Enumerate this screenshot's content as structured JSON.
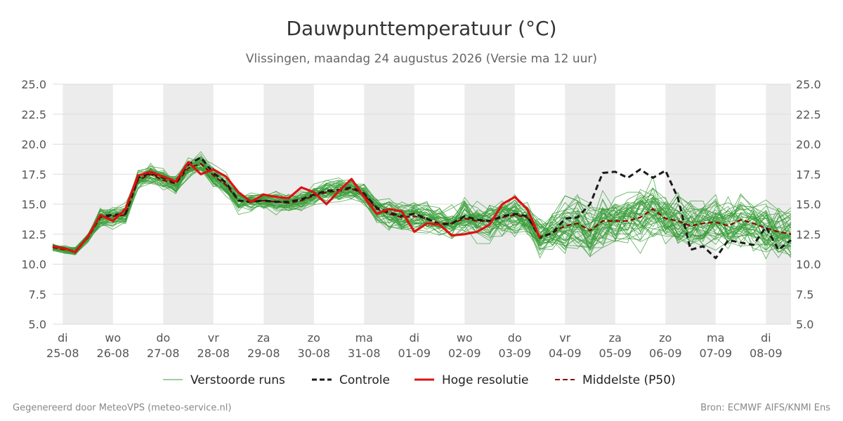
{
  "chart_data": {
    "type": "line",
    "title": "Dauwpunttemperatuur (°C)",
    "subtitle": "Vlissingen, maandag 24 augustus 2026 (Versie ma 12 uur)",
    "ylim": [
      5.0,
      25.0
    ],
    "yticks": [
      "5.0",
      "7.5",
      "10.0",
      "12.5",
      "15.0",
      "17.5",
      "20.0",
      "22.5",
      "25.0"
    ],
    "x_range_days": [
      24.8,
      39.5
    ],
    "shaded_day_starts": [
      25,
      27,
      29,
      31,
      33,
      35,
      37,
      39
    ],
    "x_ticks": [
      {
        "day": 25,
        "dow": "di",
        "date": "25-08"
      },
      {
        "day": 26,
        "dow": "wo",
        "date": "26-08"
      },
      {
        "day": 27,
        "dow": "do",
        "date": "27-08"
      },
      {
        "day": 28,
        "dow": "vr",
        "date": "28-08"
      },
      {
        "day": 29,
        "dow": "za",
        "date": "29-08"
      },
      {
        "day": 30,
        "dow": "zo",
        "date": "30-08"
      },
      {
        "day": 31,
        "dow": "ma",
        "date": "31-08"
      },
      {
        "day": 32,
        "dow": "di",
        "date": "01-09"
      },
      {
        "day": 33,
        "dow": "wo",
        "date": "02-09"
      },
      {
        "day": 34,
        "dow": "do",
        "date": "03-09"
      },
      {
        "day": 35,
        "dow": "vr",
        "date": "04-09"
      },
      {
        "day": 36,
        "dow": "za",
        "date": "05-09"
      },
      {
        "day": 37,
        "dow": "zo",
        "date": "06-09"
      },
      {
        "day": 38,
        "dow": "ma",
        "date": "07-09"
      },
      {
        "day": 39,
        "dow": "di",
        "date": "08-09"
      }
    ],
    "grid": true,
    "legend_position": "bottom",
    "legend": [
      "Verstoorde runs",
      "Controle",
      "Hoge resolutie",
      "Middelste (P50)"
    ],
    "colors": {
      "ensemble": "#3a9e3a",
      "control": "#1a1a1a",
      "high_resolution": "#dd1111",
      "median": "#8b0000",
      "shade": "#ececec",
      "grid": "#dddddd"
    },
    "series": [
      {
        "name": "Controle",
        "style": "dashed",
        "x": [
          24.8,
          25.05,
          25.25,
          25.5,
          25.75,
          26.0,
          26.25,
          26.5,
          26.75,
          27.0,
          27.25,
          27.5,
          27.75,
          28.0,
          28.25,
          28.5,
          28.75,
          29.0,
          29.25,
          29.5,
          29.75,
          30.0,
          30.25,
          30.5,
          30.75,
          31.0,
          31.25,
          31.5,
          31.75,
          32.0,
          32.25,
          32.5,
          32.75,
          33.0,
          33.25,
          33.5,
          33.75,
          34.0,
          34.25,
          34.5,
          34.75,
          35.0,
          35.25,
          35.5,
          35.75,
          36.0,
          36.25,
          36.5,
          36.75,
          37.0,
          37.25,
          37.5,
          37.75,
          38.0,
          38.25,
          38.5,
          38.75,
          39.0,
          39.25,
          39.5
        ],
        "values": [
          11.5,
          11.3,
          11.0,
          12.3,
          14.0,
          14.1,
          14.2,
          17.2,
          17.6,
          17.2,
          16.8,
          18.3,
          18.9,
          17.6,
          16.8,
          15.3,
          15.2,
          15.3,
          15.2,
          15.2,
          15.4,
          15.8,
          16.1,
          16.2,
          16.4,
          15.9,
          14.7,
          14.3,
          14.0,
          14.2,
          13.8,
          13.3,
          13.4,
          14.0,
          13.7,
          13.6,
          14.0,
          14.2,
          14.0,
          12.2,
          12.6,
          13.8,
          13.9,
          15.0,
          17.6,
          17.7,
          17.2,
          17.9,
          17.2,
          17.8,
          15.5,
          11.2,
          11.5,
          10.5,
          12.0,
          11.8,
          11.6,
          13.1,
          11.2,
          12.0
        ]
      },
      {
        "name": "Hoge resolutie",
        "style": "solid",
        "x": [
          24.8,
          25.05,
          25.25,
          25.5,
          25.75,
          26.0,
          26.25,
          26.5,
          26.75,
          27.0,
          27.25,
          27.5,
          27.75,
          28.0,
          28.25,
          28.5,
          28.75,
          29.0,
          29.25,
          29.5,
          29.75,
          30.0,
          30.25,
          30.5,
          30.75,
          31.0,
          31.25,
          31.5,
          31.75,
          32.0,
          32.25,
          32.5,
          32.75,
          33.0,
          33.25,
          33.5,
          33.75,
          34.0,
          34.25,
          34.5
        ],
        "values": [
          11.5,
          11.3,
          11.0,
          12.3,
          14.1,
          13.6,
          14.6,
          17.4,
          17.7,
          17.3,
          16.9,
          18.5,
          17.5,
          17.9,
          17.3,
          16.0,
          15.2,
          15.8,
          15.6,
          15.5,
          16.4,
          16.0,
          15.0,
          16.1,
          17.1,
          15.6,
          14.2,
          14.6,
          14.4,
          12.7,
          13.4,
          13.3,
          12.4,
          12.5,
          12.7,
          13.3,
          15.0,
          15.6,
          14.6,
          12.2
        ]
      },
      {
        "name": "Middelste (P50)",
        "style": "dashed",
        "x": [
          24.8,
          25.05,
          25.25,
          25.5,
          25.75,
          26.0,
          26.25,
          26.5,
          26.75,
          27.0,
          27.25,
          27.5,
          27.75,
          28.0,
          28.25,
          28.5,
          28.75,
          29.0,
          29.25,
          29.5,
          29.75,
          30.0,
          30.25,
          30.5,
          30.75,
          31.0,
          31.25,
          31.5,
          31.75,
          32.0,
          32.25,
          32.5,
          32.75,
          33.0,
          33.25,
          33.5,
          33.75,
          34.0,
          34.25,
          34.5,
          34.75,
          35.0,
          35.25,
          35.5,
          35.75,
          36.0,
          36.25,
          36.5,
          36.75,
          37.0,
          37.25,
          37.5,
          37.75,
          38.0,
          38.25,
          38.5,
          38.75,
          39.0,
          39.25,
          39.5
        ],
        "values": [
          11.4,
          11.2,
          11.1,
          12.2,
          13.9,
          14.0,
          14.1,
          17.0,
          17.5,
          17.0,
          16.7,
          18.0,
          18.4,
          17.4,
          16.6,
          15.3,
          15.2,
          15.3,
          15.2,
          15.1,
          15.3,
          15.7,
          16.0,
          16.1,
          16.3,
          15.8,
          14.6,
          14.2,
          13.9,
          14.0,
          13.8,
          13.4,
          13.4,
          13.8,
          13.6,
          13.6,
          13.9,
          14.1,
          13.9,
          12.3,
          12.6,
          13.2,
          13.4,
          12.8,
          13.6,
          13.6,
          13.6,
          13.9,
          14.6,
          13.8,
          13.6,
          13.2,
          13.4,
          13.5,
          13.2,
          13.7,
          13.4,
          13.0,
          12.7,
          12.5
        ]
      }
    ]
  },
  "legend_labels": {
    "ensemble": "Verstoorde runs",
    "control": "Controle",
    "high_resolution": "Hoge resolutie",
    "median": "Middelste (P50)"
  },
  "footer": {
    "left": "Gegenereerd door MeteoVPS (meteo-service.nl)",
    "right": "Bron: ECMWF AIFS/KNMI Ens"
  }
}
